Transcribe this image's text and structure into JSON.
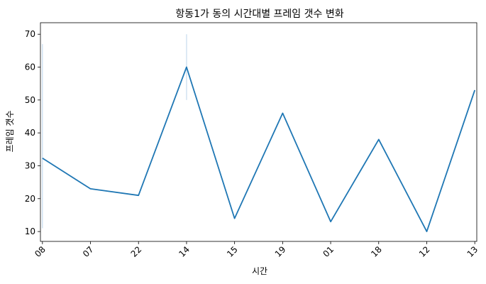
{
  "chart_data": {
    "type": "line",
    "title": "항동1가 동의 시간대별 프레임 갯수 변화",
    "xlabel": "시간",
    "ylabel": "프레임 갯수",
    "categories": [
      "08",
      "07",
      "22",
      "14",
      "15",
      "19",
      "01",
      "18",
      "12",
      "13"
    ],
    "values": [
      32.3,
      23,
      21,
      60,
      14,
      46,
      13,
      38,
      10,
      53
    ],
    "ci": [
      [
        11,
        67
      ],
      null,
      null,
      [
        50,
        70
      ],
      null,
      null,
      null,
      null,
      null,
      null
    ],
    "yticks": [
      10,
      20,
      30,
      40,
      50,
      60,
      70
    ],
    "ylim": [
      7,
      73.5
    ],
    "grid": false,
    "colors": {
      "line": "#1f77b4",
      "ci": "#c6dbef"
    }
  }
}
